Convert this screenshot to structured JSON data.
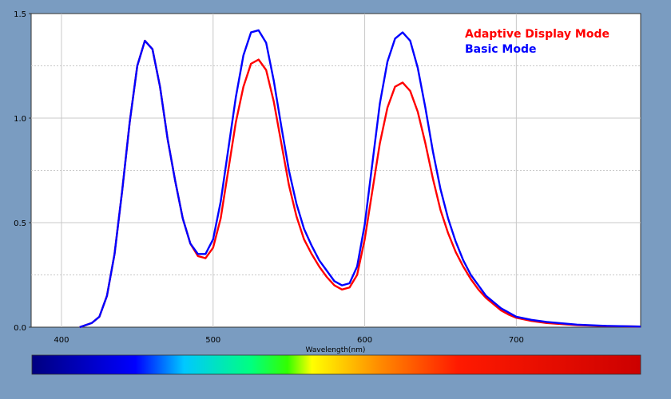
{
  "chart_data": {
    "type": "line",
    "title": "",
    "xlabel": "Wavelength(nm)",
    "ylabel": "",
    "xlim": [
      380,
      782
    ],
    "ylim": [
      0,
      1.5
    ],
    "x_ticks": [
      "400",
      "500",
      "600",
      "700"
    ],
    "y_ticks": [
      "0.0",
      "0.5",
      "1.0",
      "1.5"
    ],
    "grid": "on",
    "legend_placement": "top-right",
    "series": [
      {
        "name": "Adaptive Display Mode",
        "color": "#ff0000",
        "points": [
          [
            412,
            0
          ],
          [
            420,
            0.02
          ],
          [
            425,
            0.05
          ],
          [
            430,
            0.15
          ],
          [
            435,
            0.35
          ],
          [
            440,
            0.65
          ],
          [
            445,
            0.98
          ],
          [
            450,
            1.25
          ],
          [
            455,
            1.37
          ],
          [
            460,
            1.33
          ],
          [
            465,
            1.15
          ],
          [
            470,
            0.9
          ],
          [
            475,
            0.7
          ],
          [
            480,
            0.52
          ],
          [
            485,
            0.4
          ],
          [
            490,
            0.34
          ],
          [
            495,
            0.33
          ],
          [
            500,
            0.38
          ],
          [
            505,
            0.52
          ],
          [
            510,
            0.75
          ],
          [
            515,
            0.98
          ],
          [
            520,
            1.15
          ],
          [
            525,
            1.26
          ],
          [
            530,
            1.28
          ],
          [
            535,
            1.23
          ],
          [
            540,
            1.08
          ],
          [
            545,
            0.88
          ],
          [
            550,
            0.68
          ],
          [
            555,
            0.53
          ],
          [
            560,
            0.42
          ],
          [
            565,
            0.35
          ],
          [
            570,
            0.29
          ],
          [
            575,
            0.24
          ],
          [
            580,
            0.2
          ],
          [
            585,
            0.18
          ],
          [
            590,
            0.19
          ],
          [
            595,
            0.25
          ],
          [
            600,
            0.42
          ],
          [
            605,
            0.65
          ],
          [
            610,
            0.88
          ],
          [
            615,
            1.05
          ],
          [
            620,
            1.15
          ],
          [
            625,
            1.17
          ],
          [
            630,
            1.13
          ],
          [
            635,
            1.03
          ],
          [
            640,
            0.88
          ],
          [
            645,
            0.71
          ],
          [
            650,
            0.56
          ],
          [
            655,
            0.45
          ],
          [
            660,
            0.36
          ],
          [
            665,
            0.29
          ],
          [
            670,
            0.23
          ],
          [
            675,
            0.18
          ],
          [
            680,
            0.14
          ],
          [
            685,
            0.11
          ],
          [
            690,
            0.08
          ],
          [
            695,
            0.06
          ],
          [
            700,
            0.045
          ],
          [
            710,
            0.03
          ],
          [
            720,
            0.02
          ],
          [
            740,
            0.01
          ],
          [
            760,
            0.005
          ],
          [
            782,
            0.003
          ]
        ]
      },
      {
        "name": "Basic Mode",
        "color": "#0000ff",
        "points": [
          [
            412,
            0
          ],
          [
            420,
            0.02
          ],
          [
            425,
            0.05
          ],
          [
            430,
            0.15
          ],
          [
            435,
            0.35
          ],
          [
            440,
            0.65
          ],
          [
            445,
            0.98
          ],
          [
            450,
            1.25
          ],
          [
            455,
            1.37
          ],
          [
            460,
            1.33
          ],
          [
            465,
            1.15
          ],
          [
            470,
            0.9
          ],
          [
            475,
            0.7
          ],
          [
            480,
            0.52
          ],
          [
            485,
            0.4
          ],
          [
            490,
            0.35
          ],
          [
            495,
            0.35
          ],
          [
            500,
            0.42
          ],
          [
            505,
            0.6
          ],
          [
            510,
            0.85
          ],
          [
            515,
            1.1
          ],
          [
            520,
            1.3
          ],
          [
            525,
            1.41
          ],
          [
            530,
            1.42
          ],
          [
            535,
            1.36
          ],
          [
            540,
            1.18
          ],
          [
            545,
            0.96
          ],
          [
            550,
            0.75
          ],
          [
            555,
            0.59
          ],
          [
            560,
            0.47
          ],
          [
            565,
            0.39
          ],
          [
            570,
            0.32
          ],
          [
            575,
            0.27
          ],
          [
            580,
            0.22
          ],
          [
            585,
            0.2
          ],
          [
            590,
            0.21
          ],
          [
            595,
            0.29
          ],
          [
            600,
            0.49
          ],
          [
            605,
            0.78
          ],
          [
            610,
            1.07
          ],
          [
            615,
            1.27
          ],
          [
            620,
            1.38
          ],
          [
            625,
            1.41
          ],
          [
            630,
            1.37
          ],
          [
            635,
            1.24
          ],
          [
            640,
            1.05
          ],
          [
            645,
            0.84
          ],
          [
            650,
            0.66
          ],
          [
            655,
            0.52
          ],
          [
            660,
            0.41
          ],
          [
            665,
            0.32
          ],
          [
            670,
            0.25
          ],
          [
            675,
            0.2
          ],
          [
            680,
            0.15
          ],
          [
            685,
            0.12
          ],
          [
            690,
            0.09
          ],
          [
            695,
            0.07
          ],
          [
            700,
            0.05
          ],
          [
            710,
            0.035
          ],
          [
            720,
            0.025
          ],
          [
            740,
            0.012
          ],
          [
            760,
            0.006
          ],
          [
            782,
            0.003
          ]
        ]
      }
    ]
  },
  "colors": {
    "background": "#7a9cc1",
    "plot_area": "#ffffff",
    "grid": "#c8c8c8"
  },
  "color_bar": [
    "#000080",
    "#0000ff",
    "#00c8ff",
    "#00ff80",
    "#33ff00",
    "#ffff00",
    "#ff8c00",
    "#ff1a00",
    "#cc0000"
  ]
}
